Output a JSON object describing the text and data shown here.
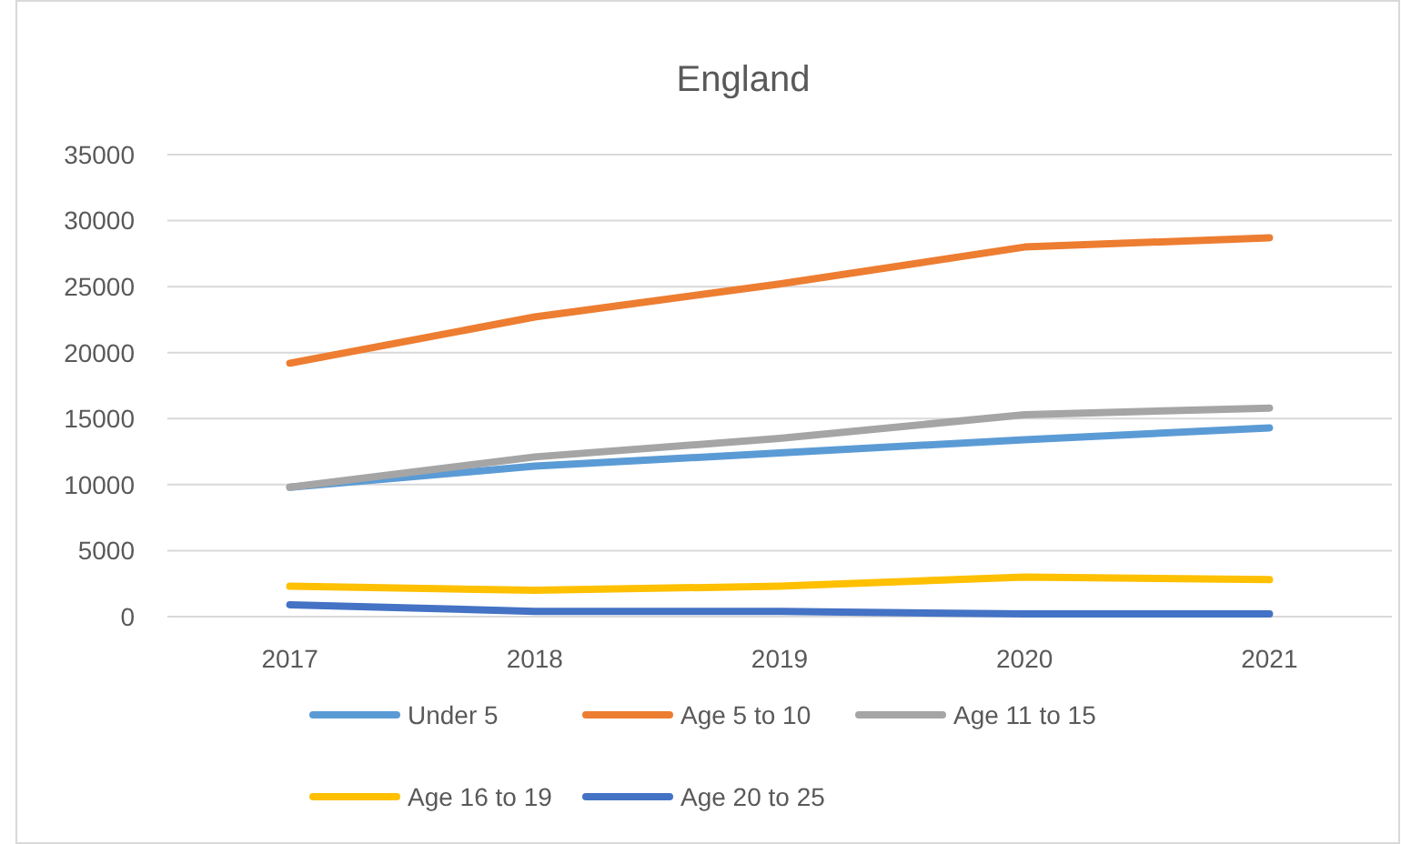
{
  "chart_data": {
    "type": "line",
    "title": "England",
    "categories": [
      "2017",
      "2018",
      "2019",
      "2020",
      "2021"
    ],
    "series": [
      {
        "name": "Under 5",
        "color": "#5b9bd5",
        "values": [
          9800,
          11400,
          12400,
          13400,
          14300
        ]
      },
      {
        "name": "Age 5 to 10",
        "color": "#ed7d31",
        "values": [
          19200,
          22700,
          25200,
          28000,
          28700
        ]
      },
      {
        "name": "Age 11 to 15",
        "color": "#a5a5a5",
        "values": [
          9800,
          12100,
          13500,
          15300,
          15800
        ]
      },
      {
        "name": "Age 16 to 19",
        "color": "#ffc000",
        "values": [
          2300,
          2000,
          2300,
          3000,
          2800
        ]
      },
      {
        "name": "Age 20 to 25",
        "color": "#4472c4",
        "values": [
          900,
          400,
          400,
          200,
          200
        ]
      }
    ],
    "ylim": [
      0,
      35000
    ],
    "yticks": [
      0,
      5000,
      10000,
      15000,
      20000,
      25000,
      30000,
      35000
    ],
    "grid": "y",
    "legend": "bottom",
    "marker": "none",
    "line_style": "solid"
  }
}
